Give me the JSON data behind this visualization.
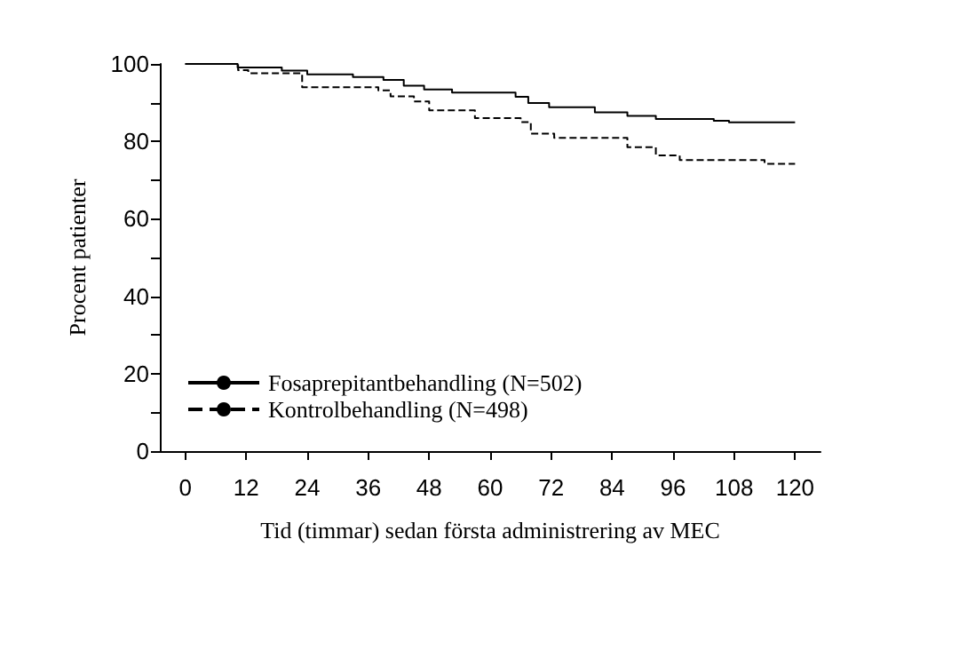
{
  "chart_data": {
    "type": "step",
    "xlabel": "Tid (timmar) sedan första administrering av MEC",
    "ylabel": "Procent patienter",
    "xlim": [
      -5,
      125
    ],
    "xticks": [
      0,
      12,
      24,
      36,
      48,
      60,
      72,
      84,
      96,
      108,
      120
    ],
    "ylim": [
      0,
      100
    ],
    "yticks": [
      0,
      {
        "value": 10,
        "label": null
      },
      20,
      {
        "value": 30,
        "label": null
      },
      40,
      {
        "value": 50,
        "label": null
      },
      60,
      {
        "value": 70,
        "label": null
      },
      80,
      {
        "value": 90,
        "label": null
      },
      100
    ],
    "grid": false,
    "legend": "bottom left",
    "marker": "none",
    "series": [
      {
        "name": "Fosaprepitantbehandling (N=502)",
        "color": "#000000",
        "line_style": "solid",
        "x": [
          0,
          10.3,
          19,
          24,
          33,
          39,
          43,
          47,
          52.5,
          65,
          67.5,
          71.6,
          80.6,
          87,
          92.6,
          104,
          107,
          120
        ],
        "values": [
          100,
          99.1,
          98.3,
          97.3,
          96.6,
          95.9,
          94.4,
          93.4,
          92.6,
          91.5,
          89.9,
          88.8,
          87.5,
          86.6,
          85.8,
          85.3,
          84.9,
          84.9
        ]
      },
      {
        "name": "Kontrolbehandling (N=498)",
        "color": "#000000",
        "line_style": "dashed",
        "x": [
          0,
          10.4,
          12.4,
          23,
          38,
          40.4,
          45,
          48,
          57,
          66,
          68,
          72.6,
          87,
          92.6,
          97.3,
          114,
          120
        ],
        "values": [
          100,
          98.4,
          97.6,
          94,
          93.2,
          91.6,
          90.3,
          88,
          86,
          85,
          82,
          80.9,
          78.5,
          76.4,
          75.2,
          74.2,
          74.2
        ]
      }
    ]
  }
}
